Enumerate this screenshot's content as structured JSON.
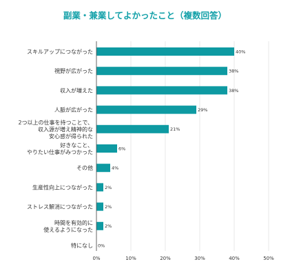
{
  "colors": {
    "bar": "#0e9aa2",
    "title": "#12a0a8",
    "grid": "#e2e2e2",
    "axis": "#555555"
  },
  "chart_data": {
    "type": "bar",
    "orientation": "horizontal",
    "title": "副業・兼業してよかったこと（複数回答）",
    "xlabel": "",
    "ylabel": "",
    "xlim": [
      0,
      50
    ],
    "grid": true,
    "categories": [
      "スキルアップにつながった",
      "視野が広がった",
      "収入が増えた",
      "人脈が広がった",
      "2つ以上の仕事を持つことで、収入源が増え精神的な安心感が得られた",
      "好きなこと、やりたい仕事がみつかった",
      "その他",
      "生産性向上につながった",
      "ストレス解消につながった",
      "時間を有効的に使えるようになった",
      "特になし"
    ],
    "category_lines": [
      [
        "スキルアップにつながった"
      ],
      [
        "視野が広がった"
      ],
      [
        "収入が増えた"
      ],
      [
        "人脈が広がった"
      ],
      [
        "2つ以上の仕事を持つことで、",
        "収入源が増え精神的な",
        "安心感が得られた"
      ],
      [
        "好きなこと、",
        "やりたい仕事がみつかった"
      ],
      [
        "その他"
      ],
      [
        "生産性向上につながった"
      ],
      [
        "ストレス解消につながった"
      ],
      [
        "時間を有効的に",
        "使えるようになった"
      ],
      [
        "特になし"
      ]
    ],
    "values": [
      40,
      38,
      38,
      29,
      21,
      6,
      4,
      2,
      2,
      2,
      0
    ],
    "value_labels": [
      "40%",
      "38%",
      "38%",
      "29%",
      "21%",
      "6%",
      "4%",
      "2%",
      "2%",
      "2%",
      "0%"
    ],
    "ticks": [
      0,
      10,
      20,
      30,
      40,
      50
    ],
    "tick_labels": [
      "0%",
      "10%",
      "20%",
      "30%",
      "40%",
      "50%"
    ]
  }
}
